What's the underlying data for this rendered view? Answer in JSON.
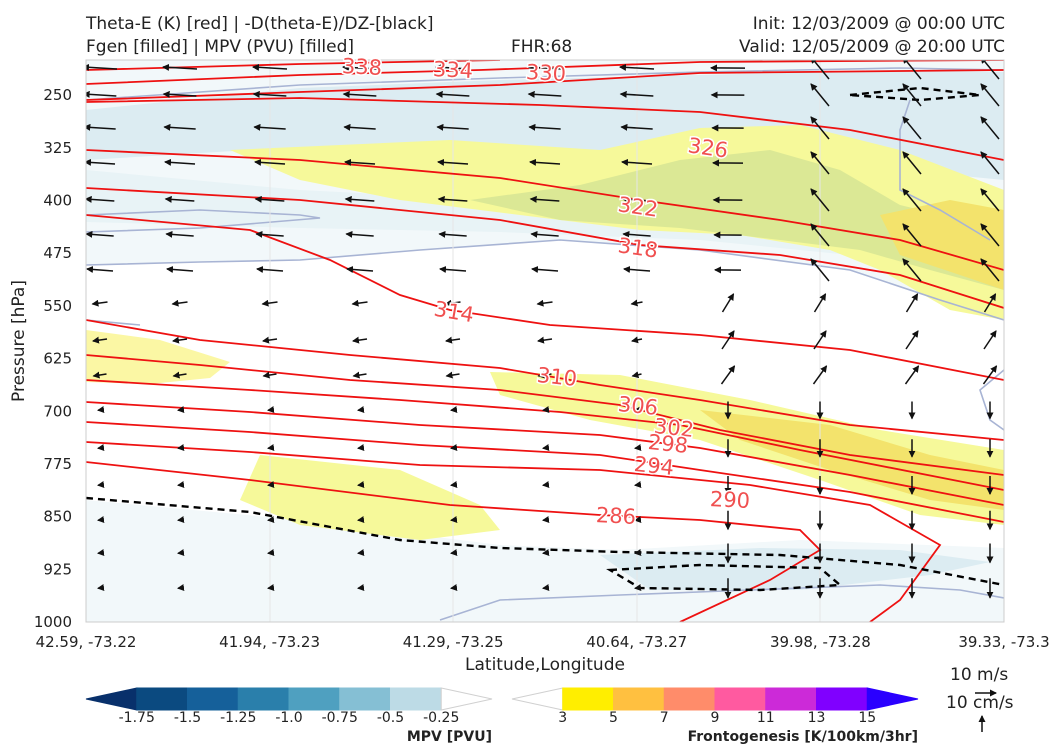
{
  "header": {
    "left_line1": "Theta-E (K) [red] | -D(theta-E)/DZ-[black]",
    "left_line2": "Fgen [filled] | MPV (PVU) [filled]",
    "center_line2": "FHR:68",
    "right_line1": "Init: 12/03/2009 @ 00:00 UTC",
    "right_line2": "Valid: 12/05/2009 @ 20:00 UTC"
  },
  "chart_data": {
    "type": "cross-section",
    "xlabel": "Latitude,Longitude",
    "ylabel": "Pressure [hPa]",
    "ylim": [
      1000,
      200
    ],
    "y_ticks": [
      250,
      325,
      400,
      475,
      550,
      625,
      700,
      775,
      850,
      925,
      1000
    ],
    "x_ticks": [
      "42.59, -73.22",
      "41.94, -73.23",
      "41.29, -73.25",
      "40.64, -73.27",
      "39.98, -73.28",
      "39.33, -73.3"
    ],
    "theta_e_contour_labels": [
      {
        "value": "338"
      },
      {
        "value": "334"
      },
      {
        "value": "330"
      },
      {
        "value": "326"
      },
      {
        "value": "322"
      },
      {
        "value": "318"
      },
      {
        "value": "314"
      },
      {
        "value": "310"
      },
      {
        "value": "306"
      },
      {
        "value": "302"
      },
      {
        "value": "298"
      },
      {
        "value": "294"
      },
      {
        "value": "290"
      },
      {
        "value": "286"
      }
    ],
    "grid": true
  },
  "mpv_colorbar": {
    "label": "MPV [PVU]",
    "ticks": [
      "-1.75",
      "-1.5",
      "-1.25",
      "-1.0",
      "-0.75",
      "-0.5",
      "-0.25"
    ],
    "colors": [
      "#08306b",
      "#0b4a80",
      "#15609a",
      "#2a7fab",
      "#4fa0c0",
      "#85bfd4",
      "#bddbe6",
      "#ffffff"
    ]
  },
  "fgen_colorbar": {
    "label": "Frontogenesis [K/100km/3hr]",
    "ticks": [
      "3",
      "5",
      "7",
      "9",
      "11",
      "13",
      "15"
    ],
    "colors": [
      "#ffffff",
      "#ffee00",
      "#ffc040",
      "#ff8c6a",
      "#ff5aa0",
      "#cc2ad8",
      "#8000ff",
      "#2a00ff"
    ]
  },
  "wind_key": {
    "horizontal_label": "10 m/s",
    "vertical_label": "10 cm/s"
  }
}
